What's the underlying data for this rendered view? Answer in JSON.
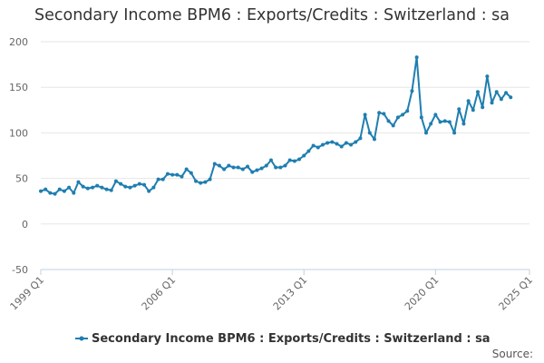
{
  "chart_data": {
    "type": "line",
    "title": "Secondary Income BPM6 : Exports/Credits : Switzerland : sa",
    "series": [
      {
        "name": "Secondary Income BPM6 : Exports/Credits : Switzerland : sa",
        "color": "#1f7eb0",
        "values": [
          36,
          38,
          34,
          33,
          38,
          36,
          40,
          34,
          46,
          41,
          39,
          40,
          42,
          40,
          38,
          37,
          47,
          44,
          41,
          40,
          42,
          44,
          43,
          36,
          40,
          49,
          49,
          55,
          54,
          54,
          52,
          60,
          56,
          47,
          45,
          46,
          49,
          66,
          64,
          60,
          64,
          62,
          62,
          60,
          63,
          57,
          59,
          61,
          64,
          70,
          62,
          62,
          64,
          70,
          69,
          71,
          75,
          80,
          86,
          84,
          87,
          89,
          90,
          88,
          85,
          89,
          87,
          90,
          94,
          120,
          100,
          93,
          122,
          121,
          113,
          108,
          117,
          120,
          124,
          146,
          183,
          117,
          100,
          110,
          120,
          112,
          113,
          112,
          100,
          126,
          110,
          135,
          125,
          145,
          128,
          162,
          133,
          145,
          137,
          144,
          139
        ]
      }
    ],
    "x_start": "1999 Q1",
    "x_end": "2024 Q1",
    "x_ticks": [
      "1999 Q1",
      "2006 Q1",
      "2013 Q1",
      "2020 Q1",
      "2025 Q1"
    ],
    "y_ticks": [
      200,
      150,
      100,
      50,
      0,
      -50
    ],
    "ylim": [
      -50,
      200
    ],
    "grid": true,
    "legend_position": "bottom",
    "source_label": "Source:"
  }
}
